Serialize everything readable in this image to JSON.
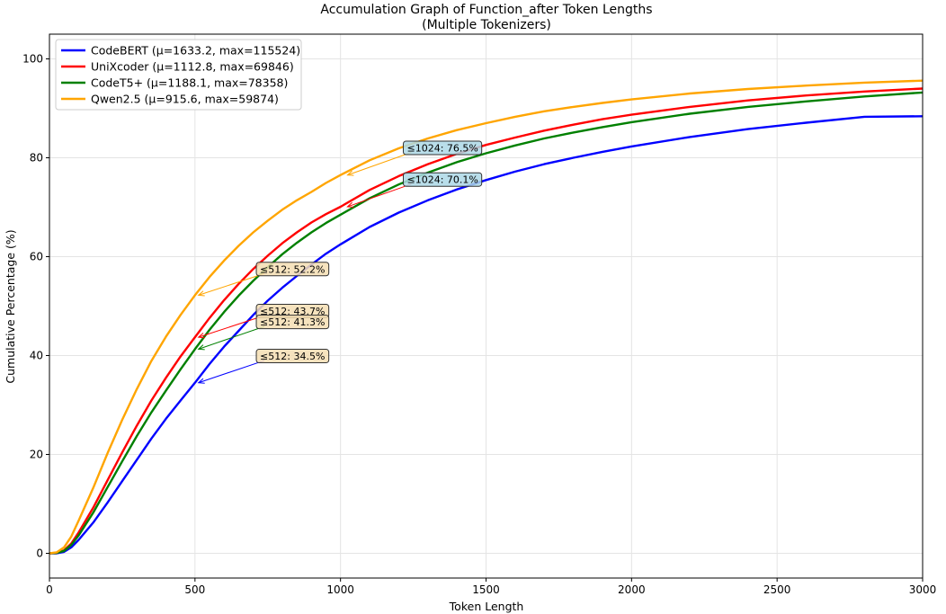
{
  "chart_data": {
    "type": "line",
    "title": "Accumulation Graph of Function_after Token Lengths",
    "subtitle": "(Multiple Tokenizers)",
    "xlabel": "Token Length",
    "ylabel": "Cumulative Percentage (%)",
    "xlim": [
      0,
      3000
    ],
    "ylim": [
      -5,
      105
    ],
    "xticks": [
      0,
      500,
      1000,
      1500,
      2000,
      2500,
      3000
    ],
    "yticks": [
      0,
      20,
      40,
      60,
      80,
      100
    ],
    "grid": true,
    "legend_position": "top-left",
    "series": [
      {
        "name": "CodeBERT (μ=1633.2, max=115524)",
        "color": "#0000ff",
        "points": [
          [
            0,
            0
          ],
          [
            25,
            0
          ],
          [
            50,
            0.3
          ],
          [
            75,
            1.2
          ],
          [
            100,
            2.7
          ],
          [
            150,
            6.2
          ],
          [
            200,
            10.3
          ],
          [
            250,
            14.6
          ],
          [
            300,
            18.9
          ],
          [
            350,
            23.2
          ],
          [
            400,
            27.2
          ],
          [
            450,
            30.9
          ],
          [
            500,
            34.5
          ],
          [
            550,
            38.3
          ],
          [
            600,
            41.8
          ],
          [
            650,
            45.0
          ],
          [
            700,
            48.2
          ],
          [
            750,
            51.1
          ],
          [
            800,
            53.7
          ],
          [
            850,
            56.1
          ],
          [
            900,
            58.4
          ],
          [
            950,
            60.6
          ],
          [
            1000,
            62.5
          ],
          [
            1100,
            66.0
          ],
          [
            1200,
            68.9
          ],
          [
            1300,
            71.4
          ],
          [
            1400,
            73.6
          ],
          [
            1500,
            75.5
          ],
          [
            1600,
            77.2
          ],
          [
            1700,
            78.7
          ],
          [
            1800,
            80.0
          ],
          [
            1900,
            81.2
          ],
          [
            2000,
            82.3
          ],
          [
            2200,
            84.2
          ],
          [
            2400,
            85.8
          ],
          [
            2600,
            87.1
          ],
          [
            2800,
            88.3
          ],
          [
            3000,
            88.4
          ]
        ]
      },
      {
        "name": "UniXcoder (μ=1112.8, max=69846)",
        "color": "#ff0000",
        "points": [
          [
            0,
            0
          ],
          [
            25,
            0.1
          ],
          [
            50,
            0.6
          ],
          [
            75,
            2.0
          ],
          [
            100,
            4.2
          ],
          [
            150,
            9.2
          ],
          [
            200,
            14.8
          ],
          [
            250,
            20.4
          ],
          [
            300,
            25.8
          ],
          [
            350,
            30.9
          ],
          [
            400,
            35.5
          ],
          [
            450,
            39.8
          ],
          [
            500,
            43.7
          ],
          [
            550,
            47.6
          ],
          [
            600,
            51.2
          ],
          [
            650,
            54.5
          ],
          [
            700,
            57.5
          ],
          [
            750,
            60.2
          ],
          [
            800,
            62.7
          ],
          [
            850,
            64.9
          ],
          [
            900,
            66.9
          ],
          [
            950,
            68.6
          ],
          [
            1000,
            70.1
          ],
          [
            1100,
            73.5
          ],
          [
            1200,
            76.3
          ],
          [
            1300,
            78.7
          ],
          [
            1400,
            80.8
          ],
          [
            1500,
            82.6
          ],
          [
            1600,
            84.1
          ],
          [
            1700,
            85.5
          ],
          [
            1800,
            86.7
          ],
          [
            1900,
            87.8
          ],
          [
            2000,
            88.7
          ],
          [
            2200,
            90.3
          ],
          [
            2400,
            91.6
          ],
          [
            2600,
            92.6
          ],
          [
            2800,
            93.4
          ],
          [
            3000,
            94.0
          ]
        ]
      },
      {
        "name": "CodeT5+ (μ=1188.1, max=78358)",
        "color": "#008000",
        "points": [
          [
            0,
            0
          ],
          [
            25,
            0.1
          ],
          [
            50,
            0.5
          ],
          [
            75,
            1.7
          ],
          [
            100,
            3.6
          ],
          [
            150,
            8.2
          ],
          [
            200,
            13.4
          ],
          [
            250,
            18.6
          ],
          [
            300,
            23.7
          ],
          [
            350,
            28.5
          ],
          [
            400,
            32.9
          ],
          [
            450,
            37.2
          ],
          [
            500,
            41.3
          ],
          [
            550,
            45.2
          ],
          [
            600,
            48.8
          ],
          [
            650,
            52.1
          ],
          [
            700,
            55.1
          ],
          [
            750,
            57.9
          ],
          [
            800,
            60.5
          ],
          [
            850,
            62.8
          ],
          [
            900,
            64.9
          ],
          [
            950,
            66.8
          ],
          [
            1000,
            68.5
          ],
          [
            1100,
            71.8
          ],
          [
            1200,
            74.6
          ],
          [
            1300,
            77.0
          ],
          [
            1400,
            79.1
          ],
          [
            1500,
            80.9
          ],
          [
            1600,
            82.5
          ],
          [
            1700,
            83.9
          ],
          [
            1800,
            85.1
          ],
          [
            1900,
            86.2
          ],
          [
            2000,
            87.2
          ],
          [
            2200,
            88.9
          ],
          [
            2400,
            90.3
          ],
          [
            2600,
            91.4
          ],
          [
            2800,
            92.4
          ],
          [
            3000,
            93.2
          ]
        ]
      },
      {
        "name": "Qwen2.5 (μ=915.6, max=59874)",
        "color": "#ffa500",
        "points": [
          [
            0,
            0
          ],
          [
            25,
            0.2
          ],
          [
            50,
            1.2
          ],
          [
            75,
            3.4
          ],
          [
            100,
            6.6
          ],
          [
            150,
            13.2
          ],
          [
            200,
            20.3
          ],
          [
            250,
            27.0
          ],
          [
            300,
            33.2
          ],
          [
            350,
            38.9
          ],
          [
            400,
            43.8
          ],
          [
            450,
            48.2
          ],
          [
            500,
            52.2
          ],
          [
            550,
            55.9
          ],
          [
            600,
            59.2
          ],
          [
            650,
            62.2
          ],
          [
            700,
            64.9
          ],
          [
            750,
            67.3
          ],
          [
            800,
            69.5
          ],
          [
            850,
            71.4
          ],
          [
            900,
            73.1
          ],
          [
            950,
            74.9
          ],
          [
            1000,
            76.5
          ],
          [
            1100,
            79.5
          ],
          [
            1200,
            81.9
          ],
          [
            1300,
            83.9
          ],
          [
            1400,
            85.6
          ],
          [
            1500,
            87.0
          ],
          [
            1600,
            88.3
          ],
          [
            1700,
            89.4
          ],
          [
            1800,
            90.3
          ],
          [
            1900,
            91.1
          ],
          [
            2000,
            91.8
          ],
          [
            2200,
            93.0
          ],
          [
            2400,
            93.9
          ],
          [
            2600,
            94.6
          ],
          [
            2800,
            95.2
          ],
          [
            3000,
            95.6
          ]
        ]
      }
    ],
    "annotations": [
      {
        "text": "≤512: 52.2%",
        "x": 512,
        "y": 52.2,
        "text_x": 720,
        "text_y": 57.5,
        "series": 3,
        "bg": "#f5deb3"
      },
      {
        "text": "≤512: 43.7%",
        "x": 512,
        "y": 43.7,
        "text_x": 720,
        "text_y": 49.0,
        "series": 1,
        "bg": "#f5deb3"
      },
      {
        "text": "≤512: 41.3%",
        "x": 512,
        "y": 41.3,
        "text_x": 720,
        "text_y": 46.8,
        "series": 2,
        "bg": "#f5deb3"
      },
      {
        "text": "≤512: 34.5%",
        "x": 512,
        "y": 34.5,
        "text_x": 720,
        "text_y": 39.9,
        "series": 0,
        "bg": "#f5deb3"
      },
      {
        "text": "≤1024: 76.5%",
        "x": 1024,
        "y": 76.5,
        "text_x": 1225,
        "text_y": 82.0,
        "series": 3,
        "bg": "#add8e6"
      },
      {
        "text": "≤1024: 70.1%",
        "x": 1024,
        "y": 70.1,
        "text_x": 1225,
        "text_y": 75.6,
        "series": 1,
        "bg": "#add8e6"
      }
    ]
  }
}
